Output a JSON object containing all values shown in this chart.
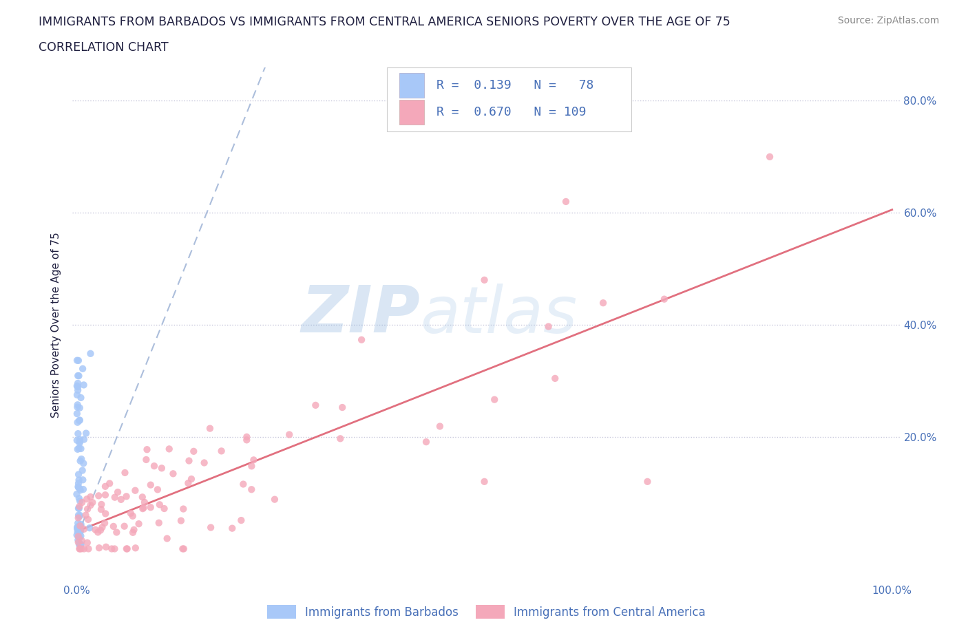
{
  "title_line1": "IMMIGRANTS FROM BARBADOS VS IMMIGRANTS FROM CENTRAL AMERICA SENIORS POVERTY OVER THE AGE OF 75",
  "title_line2": "CORRELATION CHART",
  "source_text": "Source: ZipAtlas.com",
  "ylabel": "Seniors Poverty Over the Age of 75",
  "watermark_zip": "ZIP",
  "watermark_atlas": "atlas",
  "barbados_R": 0.139,
  "barbados_N": 78,
  "central_america_R": 0.67,
  "central_america_N": 109,
  "barbados_color": "#a8c8f8",
  "central_america_color": "#f4a8ba",
  "barbados_trend_color": "#90a8d0",
  "central_america_trend_color": "#e06878",
  "grid_color": "#c8c8dc",
  "title_color": "#202040",
  "axis_label_color": "#202040",
  "tick_color": "#4870b8",
  "legend_R_color": "#4870b8",
  "figsize": [
    14.06,
    9.3
  ],
  "dpi": 100
}
